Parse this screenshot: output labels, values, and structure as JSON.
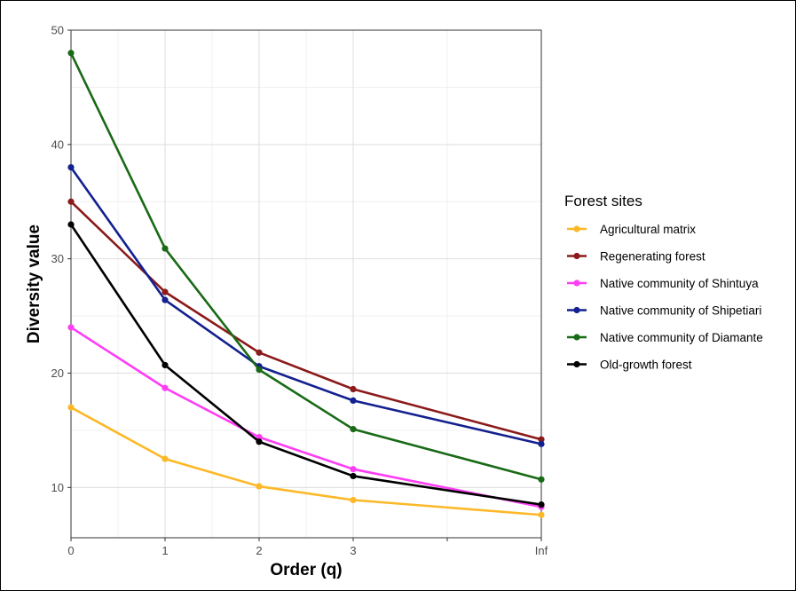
{
  "chart_data": {
    "type": "line",
    "title": "",
    "xlabel": "Order (q)",
    "ylabel": "Diversity value",
    "x_positions": [
      0,
      1,
      2,
      3,
      5
    ],
    "x_ticks": [
      {
        "pos": 0,
        "label": "0"
      },
      {
        "pos": 1,
        "label": "1"
      },
      {
        "pos": 2,
        "label": "2"
      },
      {
        "pos": 3,
        "label": "3"
      },
      {
        "pos": 5,
        "label": "Inf"
      }
    ],
    "xlim": [
      0,
      5
    ],
    "ylim": [
      5.6,
      50
    ],
    "y_ticks": [
      10,
      20,
      30,
      40,
      50
    ],
    "grid": true,
    "legend": {
      "title": "Forest sites",
      "placement": "right"
    },
    "series": [
      {
        "name": "Agricultural matrix",
        "color": "#FDB827",
        "values": [
          17.0,
          12.5,
          10.1,
          8.9,
          7.6
        ]
      },
      {
        "name": "Regenerating forest",
        "color": "#8B1A1A",
        "values": [
          35.0,
          27.1,
          21.8,
          18.6,
          14.2
        ]
      },
      {
        "name": "Native community of Shintuya",
        "color": "#FF3DF5",
        "values": [
          24.0,
          18.7,
          14.4,
          11.6,
          8.3
        ]
      },
      {
        "name": "Native community of Shipetiari",
        "color": "#13208F",
        "values": [
          38.0,
          26.4,
          20.6,
          17.6,
          13.8
        ]
      },
      {
        "name": "Native community of Diamante",
        "color": "#186A16",
        "values": [
          48.0,
          30.9,
          20.3,
          15.1,
          10.7
        ]
      },
      {
        "name": "Old-growth forest",
        "color": "#000000",
        "values": [
          33.0,
          20.7,
          14.0,
          11.0,
          8.5
        ]
      }
    ]
  }
}
